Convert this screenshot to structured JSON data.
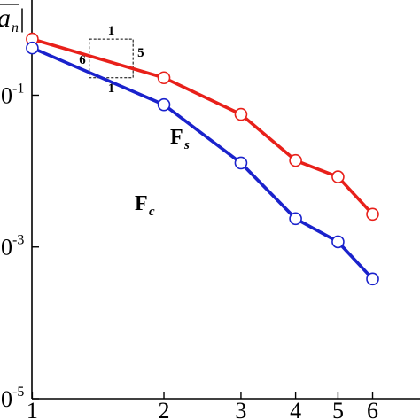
{
  "chart_data": {
    "type": "line",
    "xscale": "log",
    "yscale": "log",
    "x": [
      1,
      2,
      3,
      4,
      5,
      6
    ],
    "x_tick_labels": [
      "1",
      "2",
      "3",
      "4",
      "5",
      "6"
    ],
    "ylim": [
      1e-05,
      1.8
    ],
    "xlim": [
      0.998,
      7.7
    ],
    "y_ticks": [
      {
        "value": 0.1,
        "label": "0",
        "exp": "-1"
      },
      {
        "value": 0.001,
        "label": "0",
        "exp": "-3"
      },
      {
        "value": 1e-05,
        "label": "0",
        "exp": "-5"
      }
    ],
    "ylabel_fragment": {
      "main": "a",
      "sub": "n",
      "bar": "|"
    },
    "series": [
      {
        "name": "F_s",
        "label_main": "F",
        "label_sub": "s",
        "color": "#e8201a",
        "values": [
          0.55,
          0.17,
          0.056,
          0.0138,
          0.0084,
          0.0027
        ]
      },
      {
        "name": "F_c",
        "label_main": "F",
        "label_sub": "c",
        "color": "#1a22cc",
        "values": [
          0.42,
          0.075,
          0.0128,
          0.00236,
          0.00117,
          0.000379
        ]
      }
    ],
    "slope_triangles": [
      {
        "side_label": "5",
        "run_label": "1",
        "x0": 1.35,
        "x1": 1.7,
        "y_low": 0.17,
        "y_high": 0.55,
        "orientation": "upper"
      },
      {
        "side_label": "6",
        "run_label": "1",
        "x0": 1.35,
        "x1": 1.7,
        "y_low": 0.17,
        "y_high": 0.55,
        "orientation": "lower"
      }
    ],
    "grid": false,
    "legend": "inline labels"
  }
}
